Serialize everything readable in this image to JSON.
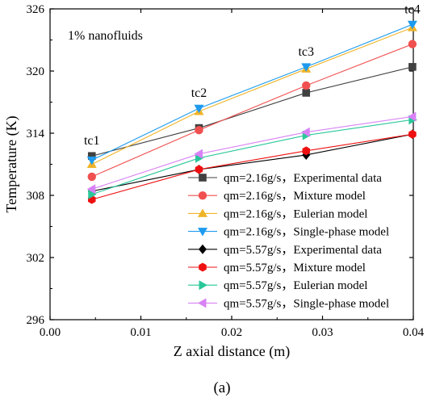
{
  "chart_data": {
    "type": "line",
    "title": "",
    "xlabel": "Z axial distance (m)",
    "ylabel": "Temperature (K)",
    "xlim": [
      0.0,
      0.04
    ],
    "ylim": [
      296,
      326
    ],
    "xticks": [
      "0.00",
      "0.01",
      "0.02",
      "0.03",
      "0.04"
    ],
    "yticks": [
      "296",
      "302",
      "308",
      "314",
      "320",
      "326"
    ],
    "x": [
      0.0046,
      0.0164,
      0.0282,
      0.0399
    ],
    "legend_position": "bottom-right",
    "grid": false,
    "series": [
      {
        "name": "qm=2.16g/s，Experimental data",
        "color": "#404040",
        "marker": "square",
        "values": [
          311.8,
          314.5,
          317.9,
          320.4
        ]
      },
      {
        "name": "qm=2.16g/s，Mixture model",
        "color": "#f0504f",
        "marker": "circle",
        "values": [
          309.8,
          314.3,
          318.6,
          322.6
        ]
      },
      {
        "name": "qm=2.16g/s，Eulerian model",
        "color": "#f0b428",
        "marker": "triangle-up",
        "values": [
          311.0,
          316.1,
          320.2,
          324.2
        ]
      },
      {
        "name": "qm=2.16g/s，Single-phase model",
        "color": "#1e9bef",
        "marker": "triangle-down",
        "values": [
          311.4,
          316.4,
          320.4,
          324.5
        ]
      },
      {
        "name": "qm=5.57g/s，Experimental data",
        "color": "#000000",
        "marker": "diamond",
        "values": [
          308.4,
          310.5,
          311.9,
          313.9
        ]
      },
      {
        "name": "qm=5.57g/s，Mixture model",
        "color": "#ee1010",
        "marker": "hexagon",
        "values": [
          307.6,
          310.5,
          312.3,
          313.9
        ]
      },
      {
        "name": "qm=5.57g/s，Eulerian model",
        "color": "#29c79a",
        "marker": "triangle-right",
        "values": [
          308.1,
          311.6,
          313.8,
          315.3
        ]
      },
      {
        "name": "qm=5.57g/s，Single-phase model",
        "color": "#d882f5",
        "marker": "triangle-left",
        "values": [
          308.6,
          312.0,
          314.1,
          315.6
        ]
      }
    ],
    "annotations": [
      {
        "text": "1% nanofluids",
        "position": "top-left"
      },
      {
        "text": "tc1",
        "x": 0.0046
      },
      {
        "text": "tc2",
        "x": 0.0164
      },
      {
        "text": "tc3",
        "x": 0.0282
      },
      {
        "text": "tc4",
        "x": 0.0399
      }
    ],
    "caption": "(a)"
  }
}
